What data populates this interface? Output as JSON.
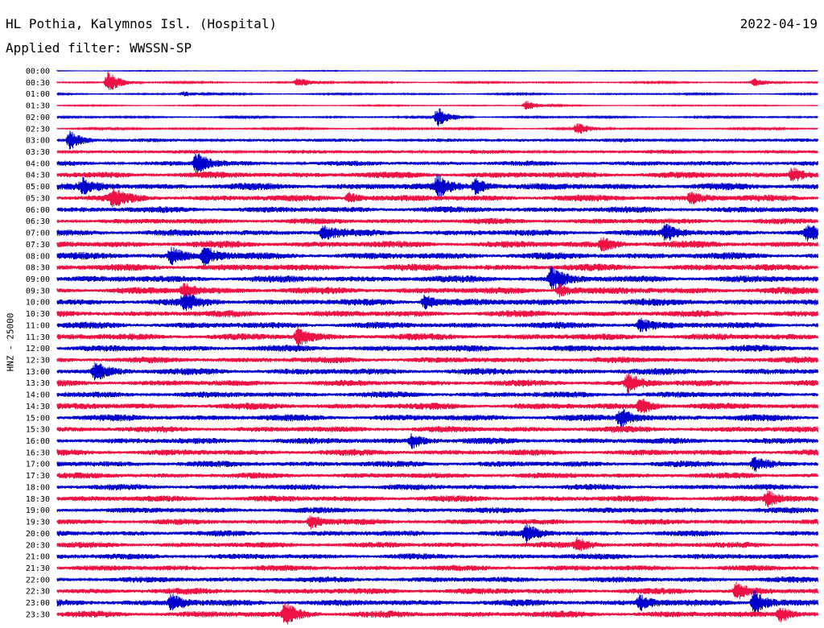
{
  "header": {
    "station": "HL Pothia, Kalymnos Isl. (Hospital)",
    "date": "2022-04-19",
    "filter": "Applied filter: WWSSN-SP"
  },
  "chart_data": {
    "type": "line",
    "title": "HL Pothia, Kalymnos Isl. (Hospital)",
    "ylabel": "HNZ - 25000",
    "row_labels": [
      "00:00",
      "00:30",
      "01:00",
      "01:30",
      "02:00",
      "02:30",
      "03:00",
      "03:30",
      "04:00",
      "04:30",
      "05:00",
      "05:30",
      "06:00",
      "06:30",
      "07:00",
      "07:30",
      "08:00",
      "08:30",
      "09:00",
      "09:30",
      "10:00",
      "10:30",
      "11:00",
      "11:30",
      "12:00",
      "12:30",
      "13:00",
      "13:30",
      "14:00",
      "14:30",
      "15:00",
      "15:30",
      "16:00",
      "16:30",
      "17:00",
      "17:30",
      "18:00",
      "18:30",
      "19:00",
      "19:30",
      "20:00",
      "20:30",
      "21:00",
      "21:30",
      "22:00",
      "22:30",
      "23:00",
      "23:30"
    ],
    "colors": [
      "#0000cc",
      "#ee1144"
    ],
    "noise_level": [
      0.4,
      0.8,
      0.8,
      0.6,
      0.9,
      1.0,
      1.8,
      2.0,
      2.6,
      3.4,
      3.6,
      3.4,
      3.2,
      3.0,
      3.4,
      3.6,
      3.6,
      3.6,
      3.6,
      3.6,
      3.6,
      3.4,
      3.4,
      3.4,
      3.4,
      3.2,
      3.4,
      3.2,
      3.2,
      3.4,
      3.4,
      3.2,
      3.2,
      3.2,
      3.2,
      3.0,
      3.0,
      3.2,
      3.0,
      3.0,
      3.0,
      3.0,
      3.0,
      3.0,
      3.0,
      3.2,
      3.4,
      3.4
    ],
    "events": [
      {
        "row": 1,
        "time_min": 2.0,
        "amp": 14
      },
      {
        "row": 1,
        "time_min": 9.5,
        "amp": 6
      },
      {
        "row": 1,
        "time_min": 27.5,
        "amp": 5
      },
      {
        "row": 2,
        "time_min": 5.0,
        "amp": 3
      },
      {
        "row": 3,
        "time_min": 18.5,
        "amp": 6
      },
      {
        "row": 4,
        "time_min": 15.0,
        "amp": 12
      },
      {
        "row": 5,
        "time_min": 20.5,
        "amp": 7
      },
      {
        "row": 6,
        "time_min": 0.5,
        "amp": 12
      },
      {
        "row": 8,
        "time_min": 5.5,
        "amp": 14
      },
      {
        "row": 9,
        "time_min": 29.0,
        "amp": 9
      },
      {
        "row": 10,
        "time_min": 1.0,
        "amp": 8
      },
      {
        "row": 10,
        "time_min": 15.0,
        "amp": 12
      },
      {
        "row": 10,
        "time_min": 16.5,
        "amp": 10
      },
      {
        "row": 11,
        "time_min": 2.2,
        "amp": 10
      },
      {
        "row": 11,
        "time_min": 11.5,
        "amp": 7
      },
      {
        "row": 11,
        "time_min": 25.0,
        "amp": 7
      },
      {
        "row": 14,
        "time_min": 10.5,
        "amp": 8
      },
      {
        "row": 14,
        "time_min": 24.0,
        "amp": 9
      },
      {
        "row": 14,
        "time_min": 29.6,
        "amp": 8
      },
      {
        "row": 15,
        "time_min": 21.5,
        "amp": 8
      },
      {
        "row": 16,
        "time_min": 4.5,
        "amp": 10
      },
      {
        "row": 16,
        "time_min": 5.8,
        "amp": 12
      },
      {
        "row": 18,
        "time_min": 19.5,
        "amp": 14
      },
      {
        "row": 19,
        "time_min": 5.0,
        "amp": 9
      },
      {
        "row": 19,
        "time_min": 19.8,
        "amp": 8
      },
      {
        "row": 20,
        "time_min": 5.0,
        "amp": 10
      },
      {
        "row": 20,
        "time_min": 14.5,
        "amp": 9
      },
      {
        "row": 22,
        "time_min": 23.0,
        "amp": 8
      },
      {
        "row": 23,
        "time_min": 9.5,
        "amp": 11
      },
      {
        "row": 26,
        "time_min": 1.5,
        "amp": 11
      },
      {
        "row": 27,
        "time_min": 22.5,
        "amp": 12
      },
      {
        "row": 29,
        "time_min": 23.0,
        "amp": 10
      },
      {
        "row": 30,
        "time_min": 22.2,
        "amp": 12
      },
      {
        "row": 32,
        "time_min": 14.0,
        "amp": 9
      },
      {
        "row": 34,
        "time_min": 27.5,
        "amp": 9
      },
      {
        "row": 37,
        "time_min": 28.0,
        "amp": 9
      },
      {
        "row": 39,
        "time_min": 10.0,
        "amp": 8
      },
      {
        "row": 40,
        "time_min": 18.5,
        "amp": 10
      },
      {
        "row": 41,
        "time_min": 20.5,
        "amp": 8
      },
      {
        "row": 45,
        "time_min": 26.8,
        "amp": 10
      },
      {
        "row": 46,
        "time_min": 27.5,
        "amp": 16
      },
      {
        "row": 46,
        "time_min": 4.5,
        "amp": 10
      },
      {
        "row": 46,
        "time_min": 23.0,
        "amp": 9
      },
      {
        "row": 47,
        "time_min": 9.0,
        "amp": 14
      },
      {
        "row": 47,
        "time_min": 28.5,
        "amp": 10
      }
    ]
  }
}
